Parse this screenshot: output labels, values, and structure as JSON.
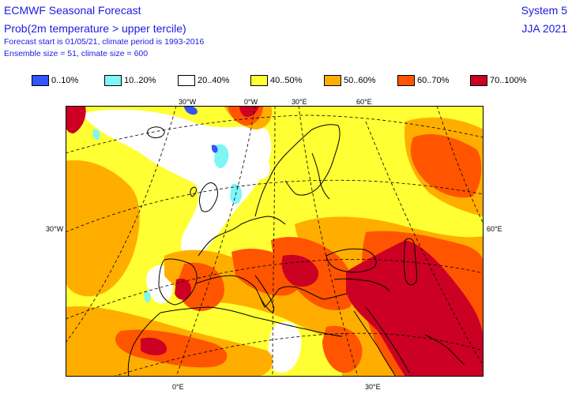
{
  "header": {
    "title": "ECMWF Seasonal Forecast",
    "subtitle": "Prob(2m temperature > upper tercile)",
    "line3": "Forecast start is 01/05/21, climate period is 1993-2016",
    "line4": "Ensemble size = 51, climate size = 600",
    "system": "System 5",
    "season": "JJA 2021"
  },
  "legend": [
    {
      "label": "0..10%",
      "color": "#3355ff"
    },
    {
      "label": "10..20%",
      "color": "#7ff5f5"
    },
    {
      "label": "20..40%",
      "color": "#ffffff"
    },
    {
      "label": "40..50%",
      "color": "#ffff33"
    },
    {
      "label": "50..60%",
      "color": "#ffae00"
    },
    {
      "label": "60..70%",
      "color": "#ff5500"
    },
    {
      "label": "70..100%",
      "color": "#cc0022"
    }
  ],
  "axis_labels": {
    "top": [
      "30°W",
      "0°W",
      "30°E",
      "60°E"
    ],
    "left": "30°W",
    "right": "60°E",
    "bottom": [
      "0°E",
      "30°E"
    ]
  }
}
